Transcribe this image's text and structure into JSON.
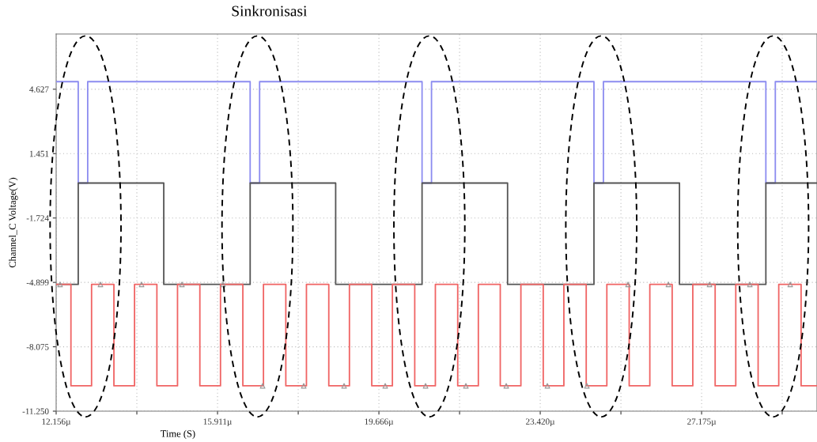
{
  "chart_data": {
    "type": "step",
    "title": "Sinkronisasi",
    "xlabel": "Time (S)",
    "ylabel": "Channel_C Voltage(V)",
    "xlim": [
      12.156,
      29.86
    ],
    "ylim": [
      -11.25,
      7.35
    ],
    "xticks": [
      {
        "value": 12.156,
        "label": "12.156µ"
      },
      {
        "value": 14.0335,
        "label": null
      },
      {
        "value": 15.911,
        "label": "15.911µ"
      },
      {
        "value": 17.7885,
        "label": null
      },
      {
        "value": 19.666,
        "label": "19.666µ"
      },
      {
        "value": 21.543,
        "label": null
      },
      {
        "value": 23.42,
        "label": "23.420µ"
      },
      {
        "value": 25.2975,
        "label": null
      },
      {
        "value": 27.175,
        "label": "27.175µ"
      },
      {
        "value": 29.05,
        "label": null
      }
    ],
    "yticks": [
      4.627,
      1.451,
      -1.724,
      -4.899,
      -8.075,
      {
        "value": -11.25,
        "label": "-11.250"
      }
    ],
    "grid": true,
    "legend": false,
    "line_style": "solid",
    "series": [
      {
        "color": "#8c8cf0",
        "x": [
          12.156,
          12.67,
          12.89,
          16.67,
          16.89,
          20.67,
          20.89,
          24.67,
          24.89,
          28.67,
          28.89,
          29.86
        ],
        "values": [
          5,
          0,
          5,
          0,
          5,
          0,
          5,
          0,
          5,
          0,
          5,
          5
        ]
      },
      {
        "color": "#555555",
        "x": [
          12.156,
          12.67,
          14.66,
          16.67,
          18.66,
          20.67,
          22.66,
          24.67,
          26.66,
          28.67,
          29.86
        ],
        "values": [
          -5,
          0,
          -5,
          0,
          -5,
          0,
          -5,
          0,
          -5,
          0,
          0
        ]
      },
      {
        "color": "#f06464",
        "x": [
          12.156,
          12.5,
          12.98,
          13.5,
          13.98,
          14.5,
          14.98,
          15.5,
          15.98,
          16.5,
          16.98,
          17.5,
          17.98,
          18.5,
          18.98,
          19.5,
          19.98,
          20.5,
          20.98,
          21.5,
          21.98,
          22.49,
          22.97,
          23.49,
          23.97,
          24.49,
          24.97,
          25.49,
          25.97,
          26.49,
          26.97,
          27.49,
          27.97,
          28.49,
          28.97,
          29.49,
          29.86
        ],
        "values": [
          -5,
          -10,
          -5,
          -10,
          -5,
          -10,
          -5,
          -10,
          -5,
          -10,
          -5,
          -10,
          -5,
          -10,
          -5,
          -10,
          -5,
          -10,
          -5,
          -10,
          -5,
          -10,
          -5,
          -10,
          -5,
          -10,
          -5,
          -10,
          -5,
          -10,
          -5,
          -10,
          -5,
          -10,
          -5,
          -10,
          -10
        ]
      },
      {
        "type": "scatter",
        "marker": "triangle",
        "color": "#999999",
        "x": [
          12.248,
          13.187,
          14.144,
          15.083,
          16.04,
          16.96,
          17.917,
          18.856,
          19.813,
          20.752,
          21.69,
          22.629,
          23.586,
          24.506,
          25.463,
          26.402,
          27.359,
          28.298,
          29.237
        ],
        "values": [
          -5,
          -5,
          -5,
          -5,
          -5,
          -10,
          -10,
          -10,
          -10,
          -10,
          -10,
          -10,
          -10,
          -10,
          -5,
          -5,
          -5,
          -5,
          -5
        ]
      }
    ]
  }
}
